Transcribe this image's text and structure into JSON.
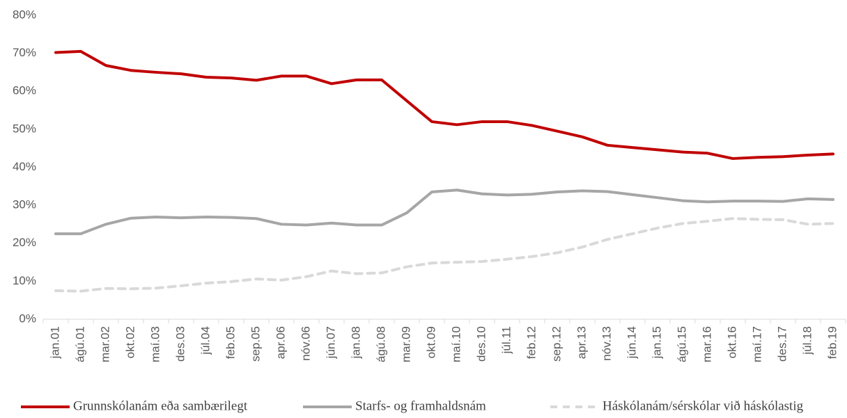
{
  "chart_data": {
    "type": "line",
    "categories": [
      "jan.01",
      "ágú.01",
      "mar.02",
      "okt.02",
      "maí.03",
      "des.03",
      "júl.04",
      "feb.05",
      "sep.05",
      "apr.06",
      "nóv.06",
      "jún.07",
      "jan.08",
      "ágú.08",
      "mar.09",
      "okt.09",
      "maí.10",
      "des.10",
      "júl.11",
      "feb.12",
      "sep.12",
      "apr.13",
      "nóv.13",
      "jún.14",
      "jan.15",
      "ágú.15",
      "mar.16",
      "okt.16",
      "maí.17",
      "des.17",
      "júl.18",
      "feb.19"
    ],
    "series": [
      {
        "name": "Grunnskólanám eða sambærilegt",
        "color": "#c00000",
        "dashed": false,
        "values": [
          70.2,
          70.5,
          66.8,
          65.5,
          65.0,
          64.6,
          63.7,
          63.5,
          62.9,
          64.0,
          64.0,
          62.0,
          63.0,
          63.0,
          57.5,
          52.0,
          51.2,
          52.0,
          52.0,
          51.0,
          49.5,
          48.0,
          45.8,
          45.2,
          44.6,
          44.0,
          43.7,
          42.3,
          42.6,
          42.8,
          43.2,
          43.5
        ]
      },
      {
        "name": "Starfs- og framhaldsnám",
        "color": "#a6a6a6",
        "dashed": false,
        "values": [
          22.5,
          22.5,
          25.0,
          26.6,
          26.9,
          26.7,
          26.9,
          26.8,
          26.5,
          25.0,
          24.8,
          25.3,
          24.8,
          24.8,
          28.0,
          33.5,
          34.0,
          33.0,
          32.7,
          32.9,
          33.5,
          33.8,
          33.6,
          32.8,
          32.0,
          31.2,
          30.9,
          31.1,
          31.1,
          31.0,
          31.7,
          31.5
        ]
      },
      {
        "name": "Háskólanám/sérskólar við háskólastig",
        "color": "#d9d9d9",
        "dashed": true,
        "values": [
          7.5,
          7.4,
          8.1,
          8.0,
          8.2,
          8.8,
          9.5,
          9.9,
          10.6,
          10.3,
          11.2,
          12.7,
          12.0,
          12.2,
          13.8,
          14.8,
          15.0,
          15.2,
          15.8,
          16.5,
          17.5,
          19.0,
          21.0,
          22.5,
          24.0,
          25.2,
          25.8,
          26.5,
          26.3,
          26.2,
          25.0,
          25.2
        ]
      }
    ],
    "ylim": [
      0,
      80
    ],
    "yticks": [
      {
        "value": 0,
        "label": "0%"
      },
      {
        "value": 10,
        "label": "10%"
      },
      {
        "value": 20,
        "label": "20%"
      },
      {
        "value": 30,
        "label": "30%"
      },
      {
        "value": 40,
        "label": "40%"
      },
      {
        "value": 50,
        "label": "50%"
      },
      {
        "value": 60,
        "label": "60%"
      },
      {
        "value": 70,
        "label": "70%"
      },
      {
        "value": 80,
        "label": "80%"
      }
    ],
    "grid": false,
    "legend": "bottom"
  }
}
